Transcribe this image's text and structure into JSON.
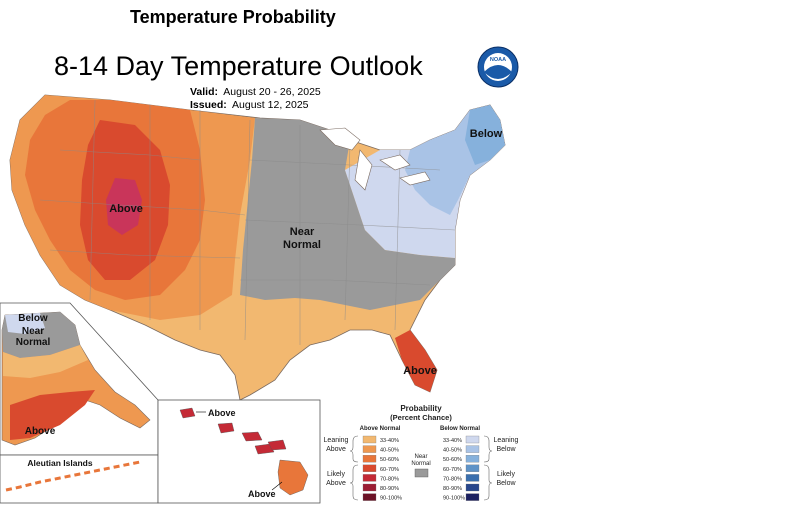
{
  "page": {
    "title": "Temperature Probability"
  },
  "map": {
    "title": "8-14 Day Temperature Outlook",
    "valid_label": "Valid:",
    "valid_value": "August 20 - 26, 2025",
    "issued_label": "Issued:",
    "issued_value": "August 12, 2025",
    "region_labels": {
      "west_above": "Above",
      "central_near": "Near",
      "central_normal": "Normal",
      "northeast_below": "Below",
      "florida_above": "Above",
      "alaska_below": "Below",
      "alaska_near": "Near",
      "alaska_normal": "Normal",
      "alaska_above": "Above",
      "aleutian": "Aleutian Islands",
      "hawaii_above_top": "Above",
      "hawaii_above_bottom": "Above"
    },
    "logo_text": "NOAA"
  },
  "legend": {
    "title": "Probability",
    "subtitle": "(Percent Chance)",
    "above_header": "Above Normal",
    "below_header": "Below Normal",
    "leaning_above_1": "Leaning",
    "leaning_above_2": "Above",
    "likely_above_1": "Likely",
    "likely_above_2": "Above",
    "leaning_below_1": "Leaning",
    "leaning_below_2": "Below",
    "likely_below_1": "Likely",
    "likely_below_2": "Below",
    "near_normal_1": "Near",
    "near_normal_2": "Normal",
    "above_ranges": [
      "33-40%",
      "40-50%",
      "50-60%",
      "60-70%",
      "70-80%",
      "80-90%",
      "90-100%"
    ],
    "below_ranges": [
      "33-40%",
      "40-50%",
      "50-60%",
      "60-70%",
      "70-80%",
      "80-90%",
      "90-100%"
    ],
    "above_colors": [
      "#f2b870",
      "#ee9850",
      "#e8763a",
      "#d94a2e",
      "#c42a36",
      "#9c1d34",
      "#6b1226"
    ],
    "below_colors": [
      "#cfd8ee",
      "#a9c3e6",
      "#86b1dc",
      "#5f93c7",
      "#3a6fae",
      "#27468c",
      "#1b2060"
    ],
    "near_color": "#9a9a9a"
  }
}
